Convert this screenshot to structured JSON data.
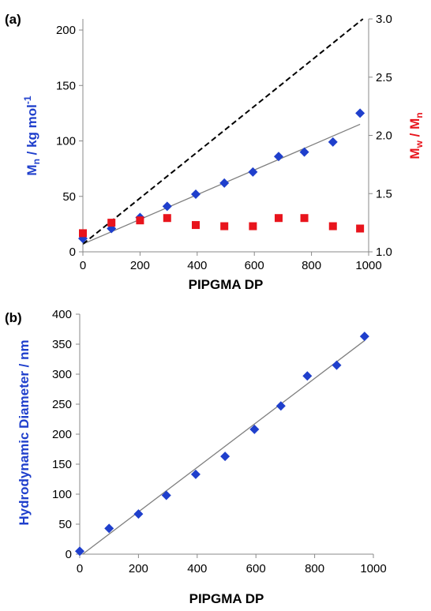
{
  "chart_data": [
    {
      "type": "scatter",
      "panel_label": "(a)",
      "xlabel": "PIPGMA DP",
      "ylabel_main": "M",
      "ylabel_sub": "n",
      "ylabel_tail": " / kg mol",
      "ylabel_sup": "-1",
      "y2label_a": "M",
      "y2label_a_sub": "w",
      "y2label_mid": " / M",
      "y2label_b_sub": "n",
      "xlim": [
        0,
        1000
      ],
      "ylim": [
        0,
        210
      ],
      "y2lim": [
        1.0,
        3.0
      ],
      "x_ticks": [
        0,
        200,
        400,
        600,
        800,
        1000
      ],
      "y_ticks": [
        0,
        50,
        100,
        150,
        200
      ],
      "y2_ticks": [
        1.0,
        1.5,
        2.0,
        2.5,
        3.0
      ],
      "y2_tick_labels": [
        "1.0",
        "1.5",
        "2.0",
        "2.5",
        "3.0"
      ],
      "colors": {
        "mn": "#1f3fcc",
        "dispersity": "#e8141c",
        "fit": "#7f7f7f",
        "theory": "#000000"
      },
      "series": [
        {
          "name": "Mn",
          "axis": "left",
          "marker": "diamond",
          "x": [
            0,
            100,
            200,
            295,
            395,
            495,
            595,
            685,
            775,
            875,
            970
          ],
          "y": [
            12,
            21,
            31,
            41,
            52,
            62,
            72,
            86,
            90,
            99,
            125
          ]
        },
        {
          "name": "Mw/Mn",
          "axis": "right",
          "marker": "square",
          "x": [
            0,
            100,
            200,
            295,
            395,
            495,
            595,
            685,
            775,
            875,
            970
          ],
          "y": [
            1.16,
            1.25,
            1.27,
            1.29,
            1.23,
            1.22,
            1.22,
            1.29,
            1.29,
            1.22,
            1.2
          ]
        }
      ],
      "fit_line": {
        "x": [
          0,
          970
        ],
        "y": [
          7,
          115
        ]
      },
      "theory_line": {
        "x": [
          0,
          980
        ],
        "y": [
          7,
          210
        ]
      }
    },
    {
      "type": "scatter",
      "panel_label": "(b)",
      "xlabel": "PIPGMA DP",
      "ylabel": "Hydrodynamic Diameter / nm",
      "xlim": [
        0,
        1000
      ],
      "ylim": [
        0,
        400
      ],
      "x_ticks": [
        0,
        200,
        400,
        600,
        800,
        1000
      ],
      "y_ticks": [
        0,
        50,
        100,
        150,
        200,
        250,
        300,
        350,
        400
      ],
      "colors": {
        "points": "#1f3fcc",
        "fit": "#7f7f7f",
        "ylabel": "#1f3fcc"
      },
      "series": [
        {
          "name": "Dh",
          "marker": "diamond",
          "x": [
            0,
            100,
            200,
            295,
            395,
            495,
            595,
            685,
            775,
            875,
            970
          ],
          "y": [
            5,
            43,
            67,
            98,
            133,
            163,
            208,
            247,
            297,
            315,
            363
          ]
        }
      ],
      "fit_line": {
        "x": [
          10,
          970
        ],
        "y": [
          0,
          356
        ]
      }
    }
  ]
}
